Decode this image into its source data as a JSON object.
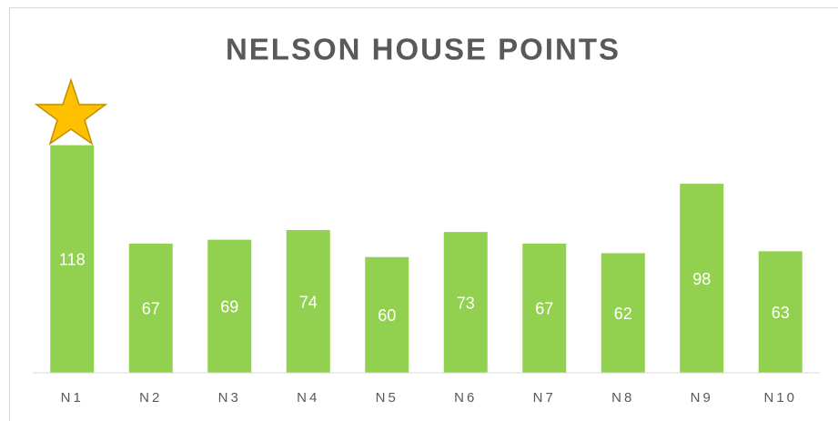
{
  "chart_data": {
    "type": "bar",
    "title": "NELSON HOUSE POINTS",
    "categories": [
      "N1",
      "N2",
      "N3",
      "N4",
      "N5",
      "N6",
      "N7",
      "N8",
      "N9",
      "N10"
    ],
    "values": [
      118,
      67,
      69,
      74,
      60,
      73,
      67,
      62,
      98,
      63
    ],
    "color": "#92d050",
    "ylim": [
      0,
      140
    ]
  }
}
